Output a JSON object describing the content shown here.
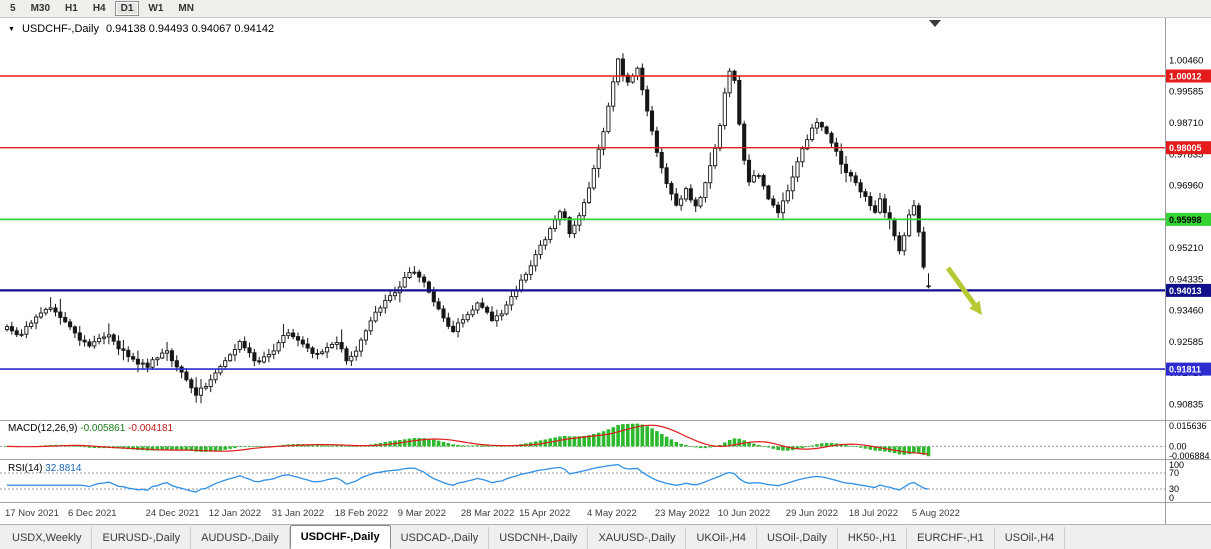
{
  "toolbar": {
    "timeframes": [
      {
        "label": "5",
        "active": false
      },
      {
        "label": "M30",
        "active": false
      },
      {
        "label": "H1",
        "active": false
      },
      {
        "label": "H4",
        "active": false
      },
      {
        "label": "D1",
        "active": true
      },
      {
        "label": "W1",
        "active": false
      },
      {
        "label": "MN",
        "active": false
      }
    ]
  },
  "chart": {
    "title": "USDCHF-,Daily",
    "ohlc_text": "0.94138 0.94493 0.94067 0.94142"
  },
  "indicators": {
    "macd": {
      "label": "MACD(12,26,9)",
      "value1": "-0.005861",
      "value2": "-0.004181",
      "axis_labels": [
        "0.015636",
        "0.00",
        "-0.006884"
      ],
      "histogram_color": "#2db92d",
      "signal_color": "#e31b1b"
    },
    "rsi": {
      "label": "RSI(14)",
      "value": "32.8814",
      "axis_labels": [
        "100",
        "70",
        "30",
        "0"
      ],
      "levels": [
        70,
        30
      ],
      "line_color": "#3090e8"
    }
  },
  "price_axis": {
    "labels": [
      "1.00460",
      "0.99585",
      "0.98710",
      "0.97835",
      "0.96960",
      "0.96085",
      "0.95210",
      "0.94335",
      "0.93460",
      "0.92585",
      "0.91710",
      "0.90835"
    ]
  },
  "levels": [
    {
      "price": 1.00012,
      "label": "1.00012",
      "color": "#e31b1b",
      "text_color": "#ffffff",
      "width": 1.4
    },
    {
      "price": 0.98005,
      "label": "0.98005",
      "color": "#e31b1b",
      "text_color": "#ffffff",
      "width": 1.4
    },
    {
      "price": 0.95998,
      "label": "0.95998",
      "color": "#33d433",
      "text_color": "#000000",
      "width": 1.8
    },
    {
      "price": 0.94013,
      "label": "0.94013",
      "color": "#10108c",
      "text_color": "#ffffff",
      "width": 2.2
    },
    {
      "price": 0.91811,
      "label": "0.91811",
      "color": "#2d2dd0",
      "text_color": "#ffffff",
      "width": 1.6
    }
  ],
  "annotations": [
    {
      "type": "arrow",
      "color": "#b6c832",
      "from": [
        948,
        250
      ],
      "to": [
        982,
        297
      ]
    }
  ],
  "tabbar": {
    "tabs": [
      {
        "label": "USDX,Weekly",
        "active": false
      },
      {
        "label": "EURUSD-,Daily",
        "active": false
      },
      {
        "label": "AUDUSD-,Daily",
        "active": false
      },
      {
        "label": "USDCHF-,Daily",
        "active": true
      },
      {
        "label": "USDCAD-,Daily",
        "active": false
      },
      {
        "label": "USDCNH-,Daily",
        "active": false
      },
      {
        "label": "XAUUSD-,Daily",
        "active": false
      },
      {
        "label": "UKOil-,H4",
        "active": false
      },
      {
        "label": "USOil-,Daily",
        "active": false
      },
      {
        "label": "HK50-,H1",
        "active": false
      },
      {
        "label": "EURCHF-,H1",
        "active": false
      },
      {
        "label": "USOil-,H4",
        "active": false
      }
    ]
  },
  "chart_data": {
    "type": "candlestick",
    "symbol": "USDCHF-",
    "period": "Daily",
    "price_range": {
      "min": 0.9061,
      "max": 1.0141
    },
    "candle_count": 191,
    "current_ohlc": [
      0.94138,
      0.94493,
      0.94067,
      0.94142
    ],
    "candle_style": {
      "up_fill": "#ffffff",
      "down_fill": "#161616",
      "border": "#161616"
    },
    "macd_params": {
      "fast": 12,
      "slow": 26,
      "signal": 9
    },
    "rsi_params": {
      "period": 14
    },
    "x_axis": {
      "labels": [
        {
          "label": "17 Nov 2021",
          "i": 0
        },
        {
          "label": "6 Dec 2021",
          "i": 13
        },
        {
          "label": "24 Dec 2021",
          "i": 29
        },
        {
          "label": "12 Jan 2022",
          "i": 42
        },
        {
          "label": "31 Jan 2022",
          "i": 55
        },
        {
          "label": "18 Feb 2022",
          "i": 68
        },
        {
          "label": "9 Mar 2022",
          "i": 81
        },
        {
          "label": "28 Mar 2022",
          "i": 94
        },
        {
          "label": "15 Apr 2022",
          "i": 106
        },
        {
          "label": "4 May 2022",
          "i": 120
        },
        {
          "label": "23 May 2022",
          "i": 134
        },
        {
          "label": "10 Jun 2022",
          "i": 147
        },
        {
          "label": "29 Jun 2022",
          "i": 161
        },
        {
          "label": "18 Jul 2022",
          "i": 174
        },
        {
          "label": "5 Aug 2022",
          "i": 187
        }
      ]
    },
    "close_waypoints": [
      [
        0,
        0.93
      ],
      [
        2,
        0.9272
      ],
      [
        4,
        0.9296
      ],
      [
        6,
        0.9324
      ],
      [
        9,
        0.9357
      ],
      [
        11,
        0.9331
      ],
      [
        13,
        0.9296
      ],
      [
        15,
        0.9263
      ],
      [
        17,
        0.9241
      ],
      [
        19,
        0.9263
      ],
      [
        21,
        0.9273
      ],
      [
        23,
        0.9241
      ],
      [
        25,
        0.9217
      ],
      [
        27,
        0.9201
      ],
      [
        29,
        0.9191
      ],
      [
        31,
        0.9213
      ],
      [
        33,
        0.9233
      ],
      [
        35,
        0.9186
      ],
      [
        37,
        0.9156
      ],
      [
        39,
        0.9113
      ],
      [
        41,
        0.9131
      ],
      [
        42,
        0.9153
      ],
      [
        44,
        0.9191
      ],
      [
        46,
        0.9223
      ],
      [
        48,
        0.9257
      ],
      [
        50,
        0.9223
      ],
      [
        52,
        0.9197
      ],
      [
        55,
        0.9237
      ],
      [
        57,
        0.9269
      ],
      [
        58,
        0.9287
      ],
      [
        60,
        0.9263
      ],
      [
        62,
        0.9243
      ],
      [
        64,
        0.9219
      ],
      [
        66,
        0.9243
      ],
      [
        68,
        0.9261
      ],
      [
        70,
        0.9207
      ],
      [
        72,
        0.9233
      ],
      [
        74,
        0.9289
      ],
      [
        76,
        0.9339
      ],
      [
        78,
        0.9373
      ],
      [
        81,
        0.9413
      ],
      [
        83,
        0.9457
      ],
      [
        85,
        0.9441
      ],
      [
        86,
        0.9421
      ],
      [
        88,
        0.9373
      ],
      [
        90,
        0.9319
      ],
      [
        92,
        0.9287
      ],
      [
        94,
        0.9323
      ],
      [
        96,
        0.9351
      ],
      [
        97,
        0.9367
      ],
      [
        99,
        0.9337
      ],
      [
        100,
        0.9313
      ],
      [
        102,
        0.9337
      ],
      [
        103,
        0.9361
      ],
      [
        105,
        0.9397
      ],
      [
        106,
        0.9427
      ],
      [
        108,
        0.9471
      ],
      [
        109,
        0.9507
      ],
      [
        111,
        0.9545
      ],
      [
        112,
        0.9573
      ],
      [
        114,
        0.9627
      ],
      [
        115,
        0.9601
      ],
      [
        116,
        0.9565
      ],
      [
        117,
        0.9589
      ],
      [
        118,
        0.9613
      ],
      [
        119,
        0.9651
      ],
      [
        120,
        0.9693
      ],
      [
        121,
        0.9741
      ],
      [
        122,
        0.9793
      ],
      [
        123,
        0.9851
      ],
      [
        124,
        0.9921
      ],
      [
        125,
        0.9985
      ],
      [
        126,
        1.0045
      ],
      [
        127,
        1.0009
      ],
      [
        128,
        0.9979
      ],
      [
        129,
        1.0005
      ],
      [
        130,
        1.0023
      ],
      [
        131,
        0.9961
      ],
      [
        132,
        0.9901
      ],
      [
        133,
        0.9846
      ],
      [
        134,
        0.9793
      ],
      [
        135,
        0.9745
      ],
      [
        136,
        0.9701
      ],
      [
        137,
        0.9665
      ],
      [
        138,
        0.9641
      ],
      [
        139,
        0.9661
      ],
      [
        140,
        0.9683
      ],
      [
        141,
        0.9657
      ],
      [
        142,
        0.9633
      ],
      [
        143,
        0.9665
      ],
      [
        144,
        0.9703
      ],
      [
        145,
        0.9749
      ],
      [
        146,
        0.9797
      ],
      [
        147,
        0.9863
      ],
      [
        148,
        0.9959
      ],
      [
        149,
        1.002
      ],
      [
        150,
        0.9989
      ],
      [
        151,
        0.9871
      ],
      [
        152,
        0.9763
      ],
      [
        153,
        0.9701
      ],
      [
        154,
        0.9717
      ],
      [
        155,
        0.9725
      ],
      [
        156,
        0.9693
      ],
      [
        157,
        0.9661
      ],
      [
        158,
        0.9637
      ],
      [
        159,
        0.9621
      ],
      [
        160,
        0.9649
      ],
      [
        161,
        0.9683
      ],
      [
        162,
        0.9723
      ],
      [
        163,
        0.9763
      ],
      [
        164,
        0.9795
      ],
      [
        165,
        0.9823
      ],
      [
        166,
        0.9851
      ],
      [
        167,
        0.9873
      ],
      [
        168,
        0.9859
      ],
      [
        169,
        0.9841
      ],
      [
        170,
        0.9817
      ],
      [
        171,
        0.9791
      ],
      [
        172,
        0.9753
      ],
      [
        174,
        0.9721
      ],
      [
        176,
        0.9683
      ],
      [
        178,
        0.9633
      ],
      [
        179,
        0.9615
      ],
      [
        180,
        0.9659
      ],
      [
        181,
        0.9613
      ],
      [
        182,
        0.9597
      ],
      [
        183,
        0.9551
      ],
      [
        184,
        0.9513
      ],
      [
        185,
        0.9559
      ],
      [
        186,
        0.9609
      ],
      [
        187,
        0.9641
      ],
      [
        188,
        0.9561
      ],
      [
        189,
        0.9469
      ],
      [
        190,
        0.9414
      ]
    ]
  }
}
